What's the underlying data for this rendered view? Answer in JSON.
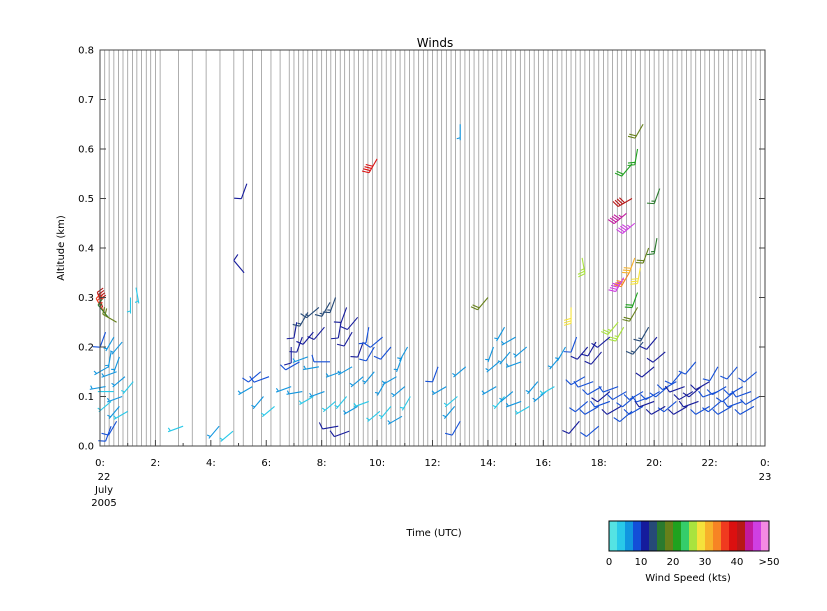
{
  "chart_data": {
    "type": "wind-barb-time-height",
    "title": "Winds",
    "xlabel": "Time (UTC)",
    "ylabel": "Altitude (km)",
    "xlim": [
      0,
      24
    ],
    "ylim": [
      0.0,
      0.8
    ],
    "x_ticks": [
      {
        "value": 0,
        "label": "0:"
      },
      {
        "value": 2,
        "label": "2:"
      },
      {
        "value": 4,
        "label": "4:"
      },
      {
        "value": 6,
        "label": "6:"
      },
      {
        "value": 8,
        "label": "8:"
      },
      {
        "value": 10,
        "label": "10:"
      },
      {
        "value": 12,
        "label": "12:"
      },
      {
        "value": 14,
        "label": "14:"
      },
      {
        "value": 16,
        "label": "16:"
      },
      {
        "value": 18,
        "label": "18:"
      },
      {
        "value": 20,
        "label": "20:"
      },
      {
        "value": 22,
        "label": "22:"
      },
      {
        "value": 24,
        "label": "0:"
      }
    ],
    "y_ticks": [
      0.0,
      0.1,
      0.2,
      0.3,
      0.4,
      0.5,
      0.6,
      0.7,
      0.8
    ],
    "y_tick_labels": [
      "0.0",
      "0.1",
      "0.2",
      "0.3",
      "0.4",
      "0.5",
      "0.6",
      "0.7",
      "0.8"
    ],
    "date_start": [
      "22",
      "July",
      "2005"
    ],
    "date_end": [
      "23"
    ],
    "profile_times": [
      0.0,
      0.17,
      0.33,
      0.5,
      0.67,
      0.83,
      1.0,
      1.17,
      1.33,
      1.5,
      1.67,
      1.83,
      2.0,
      2.17,
      2.83,
      3.33,
      3.83,
      4.33,
      4.83,
      5.17,
      5.5,
      5.83,
      6.17,
      6.5,
      6.83,
      7.0,
      7.17,
      7.33,
      7.5,
      7.67,
      7.83,
      8.0,
      8.17,
      8.33,
      8.5,
      8.67,
      8.83,
      9.0,
      9.17,
      9.33,
      9.5,
      9.67,
      9.83,
      10.0,
      10.17,
      10.33,
      10.5,
      10.67,
      10.83,
      11.0,
      11.17,
      11.33,
      11.5,
      11.67,
      11.83,
      12.0,
      12.17,
      12.33,
      12.5,
      12.67,
      12.83,
      13.0,
      13.17,
      13.33,
      13.5,
      13.67,
      13.83,
      14.0,
      14.17,
      14.33,
      14.5,
      14.67,
      14.83,
      15.0,
      15.17,
      15.33,
      15.5,
      15.67,
      15.83,
      16.0,
      16.17,
      16.33,
      16.5,
      16.67,
      16.83,
      17.0,
      17.17,
      17.33,
      17.5,
      17.67,
      17.83,
      18.0,
      18.17,
      18.33,
      18.5,
      18.67,
      18.83,
      19.0,
      19.17,
      19.33,
      19.5,
      19.67,
      19.83,
      20.0,
      20.17,
      20.33,
      20.5,
      20.67,
      20.83,
      21.0,
      21.17,
      21.33,
      21.5,
      21.67,
      21.83,
      22.0,
      22.17,
      22.33,
      22.5,
      22.67,
      22.83,
      23.0,
      23.17,
      23.33,
      23.5,
      23.67,
      23.83
    ],
    "barbs": [
      [
        0.1,
        0.28,
        340,
        40
      ],
      [
        0.15,
        0.27,
        330,
        35
      ],
      [
        0.3,
        0.26,
        320,
        15
      ],
      [
        0.6,
        0.25,
        300,
        18
      ],
      [
        0.2,
        0.23,
        200,
        8
      ],
      [
        0.5,
        0.22,
        210,
        7
      ],
      [
        0.8,
        0.21,
        220,
        6
      ],
      [
        0.4,
        0.19,
        190,
        6
      ],
      [
        0.7,
        0.18,
        200,
        5
      ],
      [
        0.3,
        0.16,
        240,
        5
      ],
      [
        0.6,
        0.15,
        250,
        6
      ],
      [
        0.9,
        0.14,
        230,
        5
      ],
      [
        1.2,
        0.13,
        220,
        4
      ],
      [
        0.2,
        0.12,
        260,
        5
      ],
      [
        0.5,
        0.11,
        270,
        4
      ],
      [
        0.8,
        0.1,
        250,
        5
      ],
      [
        0.4,
        0.09,
        230,
        4
      ],
      [
        0.7,
        0.08,
        220,
        5
      ],
      [
        1.0,
        0.07,
        240,
        4
      ],
      [
        0.6,
        0.05,
        210,
        8
      ],
      [
        0.4,
        0.04,
        200,
        9
      ],
      [
        1.1,
        0.3,
        180,
        3
      ],
      [
        1.3,
        0.32,
        170,
        3
      ],
      [
        3.0,
        0.04,
        250,
        4
      ],
      [
        4.3,
        0.04,
        220,
        5
      ],
      [
        4.8,
        0.03,
        230,
        4
      ],
      [
        5.2,
        0.35,
        320,
        10
      ],
      [
        5.3,
        0.53,
        200,
        10
      ],
      [
        5.8,
        0.15,
        230,
        9
      ],
      [
        6.1,
        0.14,
        250,
        8
      ],
      [
        5.5,
        0.12,
        240,
        5
      ],
      [
        5.9,
        0.1,
        220,
        5
      ],
      [
        6.3,
        0.08,
        230,
        4
      ],
      [
        6.9,
        0.2,
        180,
        11
      ],
      [
        7.1,
        0.25,
        190,
        12
      ],
      [
        7.3,
        0.22,
        200,
        12
      ],
      [
        7.5,
        0.27,
        210,
        13
      ],
      [
        7.7,
        0.23,
        220,
        12
      ],
      [
        7.9,
        0.28,
        230,
        13
      ],
      [
        8.1,
        0.24,
        220,
        12
      ],
      [
        8.3,
        0.29,
        210,
        14
      ],
      [
        8.5,
        0.3,
        200,
        13
      ],
      [
        8.7,
        0.25,
        190,
        12
      ],
      [
        8.9,
        0.28,
        200,
        11
      ],
      [
        9.1,
        0.23,
        210,
        11
      ],
      [
        9.3,
        0.26,
        220,
        10
      ],
      [
        9.5,
        0.21,
        200,
        10
      ],
      [
        9.7,
        0.24,
        190,
        9
      ],
      [
        9.9,
        0.2,
        210,
        9
      ],
      [
        10.2,
        0.22,
        230,
        8
      ],
      [
        10.5,
        0.2,
        220,
        8
      ],
      [
        10.9,
        0.18,
        200,
        7
      ],
      [
        11.1,
        0.2,
        210,
        7
      ],
      [
        7.2,
        0.17,
        240,
        8
      ],
      [
        7.5,
        0.18,
        250,
        7
      ],
      [
        7.9,
        0.16,
        260,
        7
      ],
      [
        8.3,
        0.17,
        270,
        8
      ],
      [
        8.7,
        0.15,
        250,
        7
      ],
      [
        9.1,
        0.16,
        240,
        6
      ],
      [
        9.5,
        0.14,
        230,
        6
      ],
      [
        9.9,
        0.15,
        220,
        6
      ],
      [
        10.3,
        0.13,
        210,
        5
      ],
      [
        10.7,
        0.14,
        240,
        5
      ],
      [
        11.0,
        0.12,
        230,
        5
      ],
      [
        6.9,
        0.12,
        250,
        5
      ],
      [
        7.3,
        0.11,
        260,
        5
      ],
      [
        7.7,
        0.1,
        240,
        4
      ],
      [
        8.1,
        0.11,
        250,
        5
      ],
      [
        8.5,
        0.09,
        230,
        4
      ],
      [
        8.9,
        0.1,
        220,
        4
      ],
      [
        9.3,
        0.08,
        240,
        5
      ],
      [
        9.7,
        0.09,
        250,
        4
      ],
      [
        10.1,
        0.07,
        230,
        4
      ],
      [
        10.5,
        0.08,
        220,
        4
      ],
      [
        10.9,
        0.06,
        240,
        5
      ],
      [
        11.2,
        0.1,
        210,
        4
      ],
      [
        8.6,
        0.04,
        260,
        11
      ],
      [
        9.0,
        0.03,
        250,
        10
      ],
      [
        10.0,
        0.58,
        210,
        38
      ],
      [
        12.2,
        0.16,
        200,
        8
      ],
      [
        12.5,
        0.12,
        240,
        5
      ],
      [
        12.9,
        0.1,
        230,
        4
      ],
      [
        12.8,
        0.08,
        220,
        5
      ],
      [
        13.0,
        0.05,
        210,
        9
      ],
      [
        13.0,
        0.65,
        180,
        6
      ],
      [
        13.2,
        0.16,
        230,
        5
      ],
      [
        14.0,
        0.3,
        220,
        19
      ],
      [
        14.2,
        0.2,
        200,
        5
      ],
      [
        14.4,
        0.17,
        230,
        6
      ],
      [
        14.6,
        0.24,
        210,
        5
      ],
      [
        14.8,
        0.19,
        220,
        6
      ],
      [
        15.0,
        0.22,
        240,
        7
      ],
      [
        15.2,
        0.17,
        250,
        6
      ],
      [
        15.4,
        0.2,
        230,
        5
      ],
      [
        14.3,
        0.12,
        240,
        5
      ],
      [
        14.6,
        0.1,
        220,
        4
      ],
      [
        14.9,
        0.11,
        230,
        5
      ],
      [
        15.2,
        0.09,
        250,
        5
      ],
      [
        15.5,
        0.08,
        240,
        4
      ],
      [
        15.8,
        0.13,
        220,
        5
      ],
      [
        16.1,
        0.11,
        230,
        5
      ],
      [
        16.4,
        0.12,
        240,
        4
      ],
      [
        16.6,
        0.18,
        220,
        5
      ],
      [
        16.8,
        0.2,
        210,
        6
      ],
      [
        17.0,
        0.28,
        180,
        28
      ],
      [
        17.2,
        0.22,
        200,
        8
      ],
      [
        17.4,
        0.38,
        170,
        25
      ],
      [
        17.6,
        0.2,
        220,
        11
      ],
      [
        17.9,
        0.21,
        210,
        12
      ],
      [
        18.1,
        0.19,
        220,
        11
      ],
      [
        18.4,
        0.22,
        230,
        12
      ],
      [
        18.7,
        0.25,
        220,
        25
      ],
      [
        18.9,
        0.24,
        210,
        27
      ],
      [
        19.2,
        0.5,
        240,
        40
      ],
      [
        19.3,
        0.45,
        230,
        45
      ],
      [
        19.4,
        0.6,
        190,
        20
      ],
      [
        19.1,
        0.35,
        210,
        34
      ],
      [
        19.3,
        0.38,
        200,
        30
      ],
      [
        19.5,
        0.36,
        190,
        29
      ],
      [
        19.4,
        0.31,
        200,
        20
      ],
      [
        19.4,
        0.28,
        210,
        18
      ],
      [
        19.6,
        0.21,
        220,
        13
      ],
      [
        19.6,
        0.65,
        210,
        19
      ],
      [
        19.8,
        0.4,
        200,
        18
      ],
      [
        20.1,
        0.42,
        190,
        16
      ],
      [
        20.2,
        0.52,
        200,
        17
      ],
      [
        19.8,
        0.24,
        210,
        13
      ],
      [
        20.1,
        0.22,
        220,
        12
      ],
      [
        20.4,
        0.19,
        230,
        11
      ],
      [
        19.2,
        0.57,
        220,
        20
      ],
      [
        19.0,
        0.47,
        230,
        43
      ],
      [
        18.9,
        0.34,
        210,
        47
      ],
      [
        17.5,
        0.14,
        240,
        8
      ],
      [
        17.8,
        0.13,
        250,
        9
      ],
      [
        18.1,
        0.12,
        240,
        9
      ],
      [
        18.4,
        0.11,
        230,
        10
      ],
      [
        18.7,
        0.12,
        250,
        9
      ],
      [
        19.0,
        0.11,
        240,
        9
      ],
      [
        19.3,
        0.1,
        230,
        8
      ],
      [
        19.6,
        0.11,
        240,
        9
      ],
      [
        19.9,
        0.1,
        250,
        9
      ],
      [
        20.2,
        0.11,
        240,
        9
      ],
      [
        20.5,
        0.12,
        230,
        8
      ],
      [
        20.8,
        0.13,
        240,
        9
      ],
      [
        21.1,
        0.12,
        250,
        10
      ],
      [
        21.4,
        0.11,
        240,
        11
      ],
      [
        21.7,
        0.12,
        230,
        10
      ],
      [
        22.0,
        0.13,
        240,
        10
      ],
      [
        22.3,
        0.11,
        250,
        9
      ],
      [
        22.6,
        0.12,
        240,
        9
      ],
      [
        22.9,
        0.11,
        230,
        9
      ],
      [
        23.2,
        0.12,
        240,
        8
      ],
      [
        23.5,
        0.11,
        250,
        8
      ],
      [
        23.8,
        0.1,
        240,
        8
      ],
      [
        17.6,
        0.09,
        230,
        9
      ],
      [
        18.0,
        0.08,
        240,
        9
      ],
      [
        18.4,
        0.09,
        250,
        9
      ],
      [
        18.8,
        0.08,
        240,
        10
      ],
      [
        19.2,
        0.07,
        230,
        9
      ],
      [
        19.6,
        0.08,
        240,
        9
      ],
      [
        20.0,
        0.09,
        250,
        10
      ],
      [
        20.4,
        0.08,
        240,
        10
      ],
      [
        20.8,
        0.09,
        230,
        9
      ],
      [
        21.2,
        0.08,
        240,
        10
      ],
      [
        21.6,
        0.09,
        250,
        10
      ],
      [
        22.0,
        0.08,
        240,
        9
      ],
      [
        22.4,
        0.09,
        230,
        9
      ],
      [
        22.8,
        0.08,
        240,
        9
      ],
      [
        23.2,
        0.09,
        250,
        8
      ],
      [
        23.6,
        0.08,
        240,
        8
      ],
      [
        17.3,
        0.05,
        220,
        12
      ],
      [
        18.0,
        0.04,
        230,
        8
      ],
      [
        21.5,
        0.17,
        220,
        9
      ],
      [
        22.3,
        0.16,
        210,
        8
      ],
      [
        23.0,
        0.16,
        220,
        8
      ],
      [
        23.7,
        0.15,
        230,
        8
      ],
      [
        21.0,
        0.15,
        220,
        9
      ],
      [
        20.0,
        0.16,
        230,
        12
      ]
    ],
    "colorbar": {
      "title": "Wind Speed (kts)",
      "tick_labels": [
        "0",
        "10",
        "20",
        "30",
        "40",
        ">50"
      ],
      "colors": [
        "#55e3e3",
        "#29c9e9",
        "#1196e0",
        "#134fd8",
        "#151b9c",
        "#264a78",
        "#2a7a2e",
        "#66801a",
        "#1fa21f",
        "#35cd6a",
        "#a9e33e",
        "#f5e23b",
        "#f7b22a",
        "#f78424",
        "#f03a1f",
        "#db1010",
        "#b81818",
        "#c31aa0",
        "#cf3fe3",
        "#f58ae3"
      ]
    }
  }
}
